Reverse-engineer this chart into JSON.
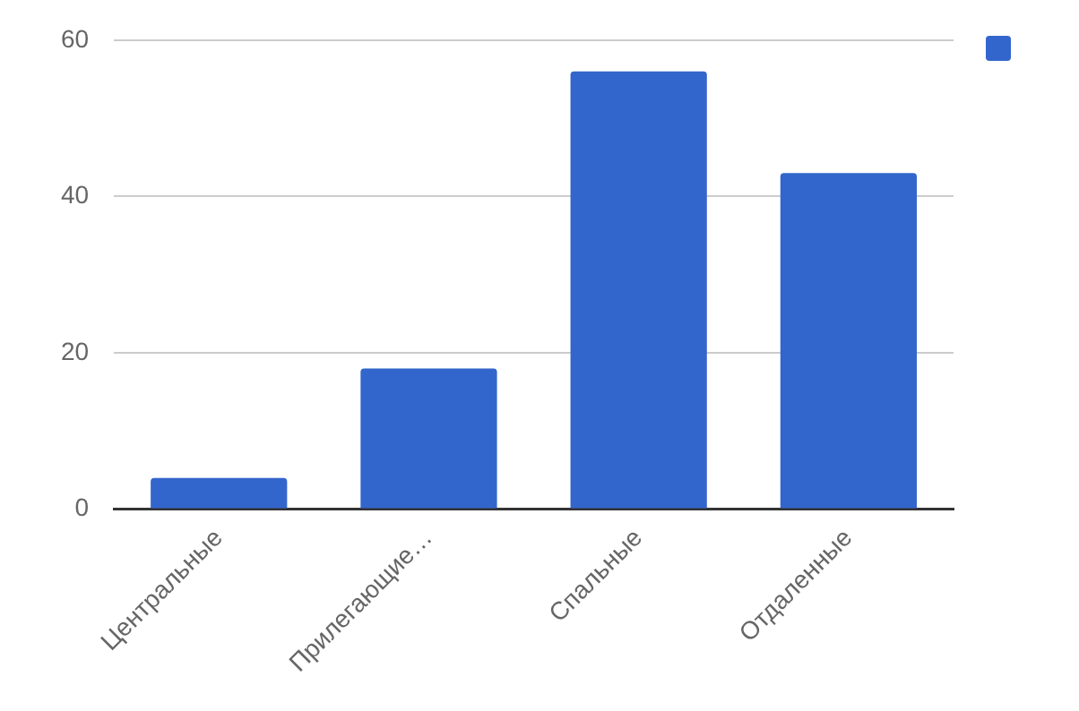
{
  "chart_data": {
    "type": "bar",
    "categories": [
      "Центральные",
      "Прилегающие…",
      "Спальные",
      "Отдаленные"
    ],
    "series": [
      {
        "color": "#3366cc",
        "values": [
          4,
          18,
          56,
          43
        ]
      }
    ],
    "ylim": [
      0,
      60
    ],
    "yticks": [
      0,
      20,
      40,
      60
    ],
    "grid": "y"
  }
}
